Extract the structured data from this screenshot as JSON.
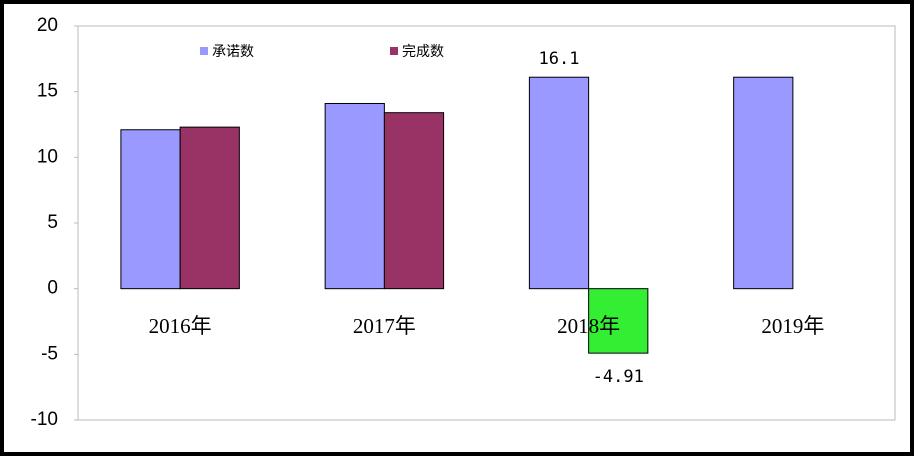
{
  "chart_data": {
    "type": "bar",
    "categories": [
      "2016年",
      "2017年",
      "2018年",
      "2019年"
    ],
    "series": [
      {
        "name": "承诺数",
        "color": "#9999ff",
        "values": [
          12.1,
          14.1,
          16.1,
          16.1
        ],
        "value_labels": [
          null,
          null,
          "16.1",
          null
        ]
      },
      {
        "name": "完成数",
        "color": "#993366",
        "colors": [
          "#993366",
          "#993366",
          "#33ee33",
          "#993366"
        ],
        "values": [
          12.3,
          13.4,
          -4.91,
          null
        ],
        "value_labels": [
          null,
          null,
          "-4.91",
          null
        ]
      }
    ],
    "ylim": [
      -10,
      20
    ],
    "yticks": [
      -10,
      -5,
      0,
      5,
      10,
      15,
      20
    ],
    "grid": false
  }
}
